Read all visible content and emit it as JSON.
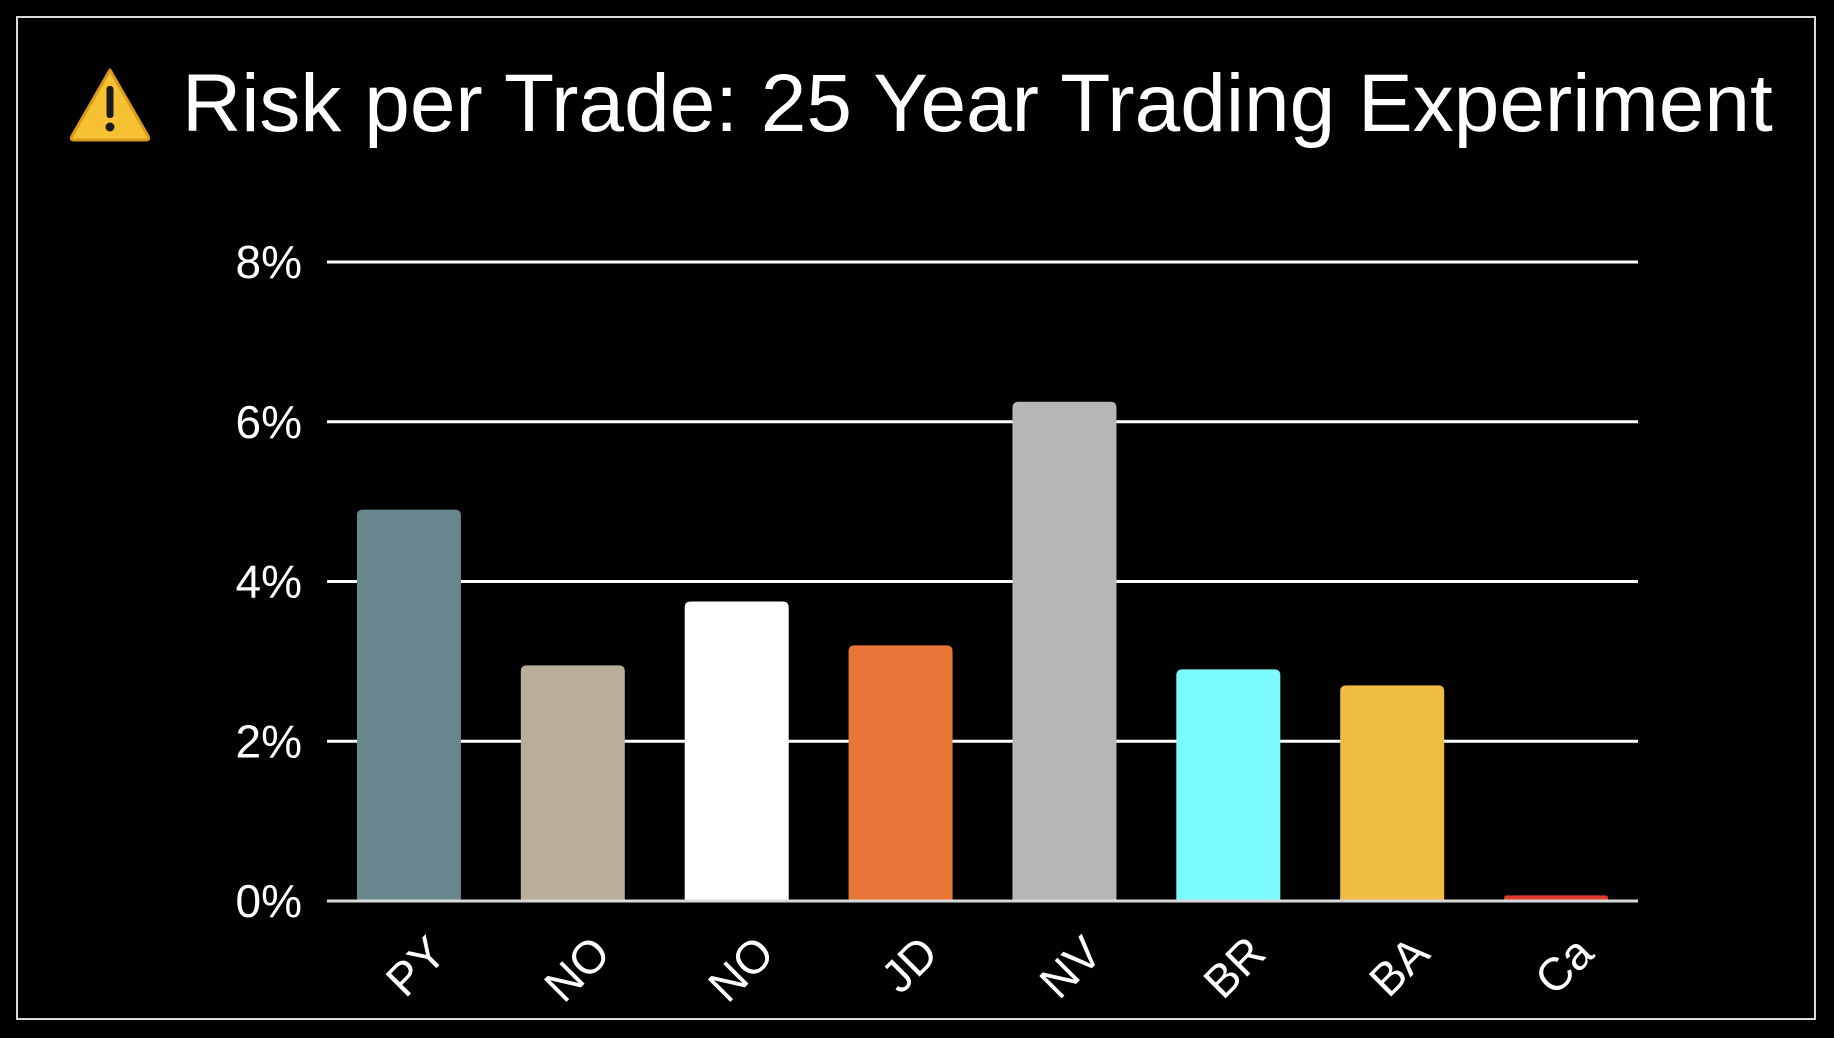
{
  "chart_data": {
    "type": "bar",
    "title": "Risk per Trade: 25 Year Trading Experiment",
    "title_icon": "warning-icon",
    "categories": [
      "PY",
      "NO",
      "NO",
      "JD",
      "NV",
      "BR",
      "BA",
      "Ca"
    ],
    "values": [
      4.9,
      2.95,
      3.75,
      3.2,
      6.25,
      2.9,
      2.7,
      0.07
    ],
    "colors": [
      "#68868d",
      "#b9ae9a",
      "#ffffff",
      "#e87636",
      "#b6b6b6",
      "#7cfbfd",
      "#efbc44",
      "#e03b2e"
    ],
    "ylim": [
      0,
      8
    ],
    "yticks": [
      0,
      2,
      4,
      6,
      8
    ],
    "ytick_labels": [
      "0%",
      "2%",
      "4%",
      "6%",
      "8%"
    ],
    "xlabel": "",
    "ylabel": "",
    "grid": true,
    "legend": "none",
    "background": "#000000",
    "gridline_color": "#ffffff"
  }
}
